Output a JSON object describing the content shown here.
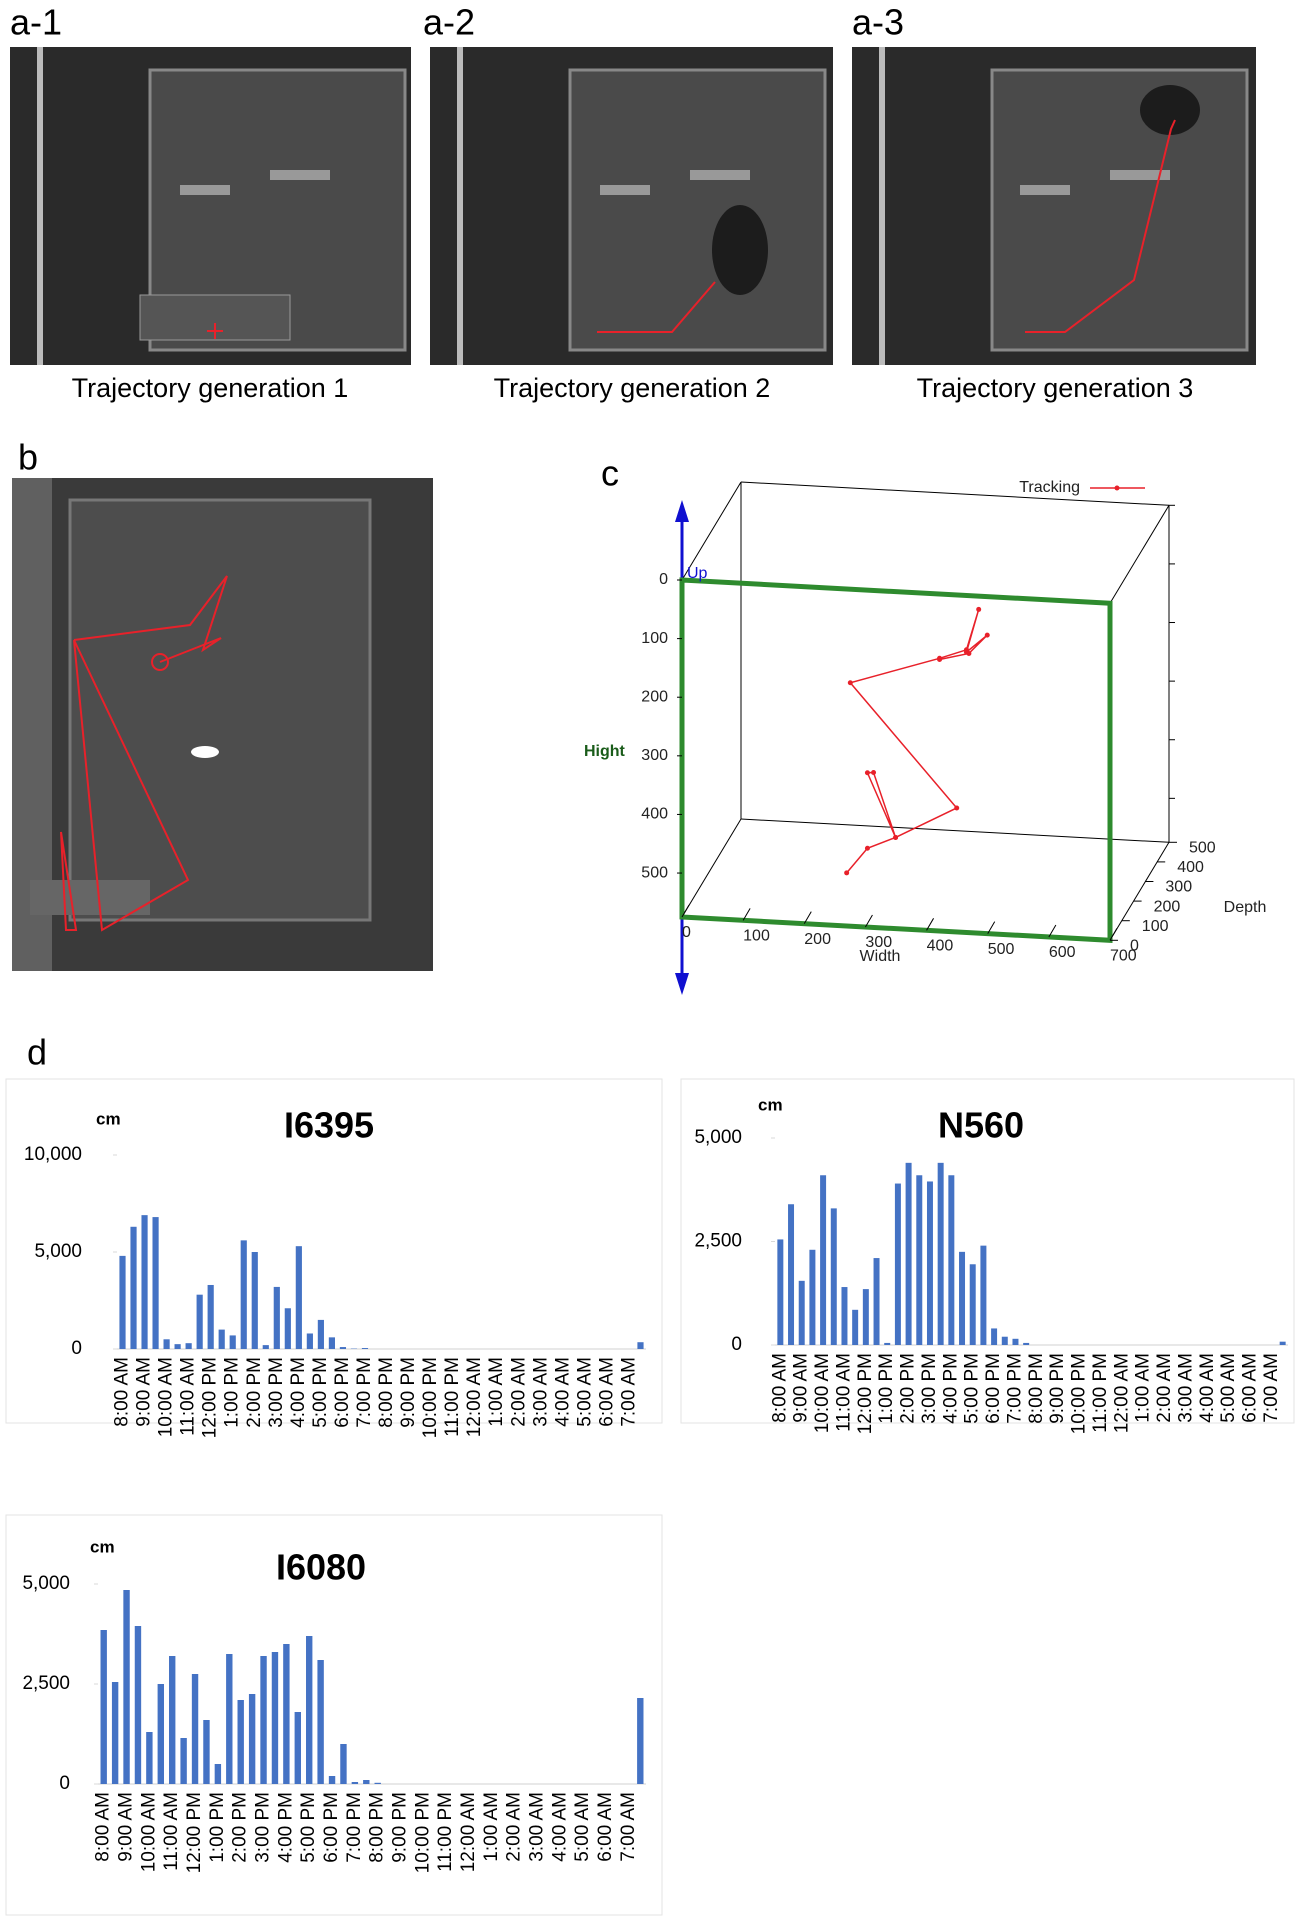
{
  "figure": {
    "labels": {
      "a1": "a-1",
      "a2": "a-2",
      "a3": "a-3",
      "b": "b",
      "c": "c",
      "d": "d"
    },
    "captions": [
      "Trajectory generation 1",
      "Trajectory generation 2",
      "Trajectory generation 3"
    ]
  },
  "chart_data": [
    {
      "type": "line3d",
      "xlabel": "Width",
      "ylabel": "Hight",
      "zlabel": "Depth",
      "up_label": "Up",
      "xlim": [
        0,
        700
      ],
      "ylim": [
        0,
        575
      ],
      "zlim": [
        0,
        500
      ],
      "xticks": [
        0,
        100,
        200,
        300,
        400,
        500,
        600,
        700
      ],
      "yticks": [
        0,
        100,
        200,
        300,
        400,
        500
      ],
      "zticks": [
        0,
        100,
        200,
        300,
        400,
        500
      ],
      "series": [
        {
          "name": "Tracking",
          "color": "#e8212a",
          "x": [
            250,
            284,
            330,
            255,
            265,
            330,
            430,
            227,
            373,
            417,
            437,
            417,
            451,
            421,
            373
          ],
          "y": [
            519,
            475,
            454,
            398,
            397,
            454,
            398,
            246,
            196,
            179,
            109,
            183,
            152,
            185,
            198
          ],
          "z": [
            100,
            100,
            100,
            250,
            250,
            100,
            100,
            250,
            250,
            250,
            250,
            250,
            250,
            250,
            250
          ]
        }
      ]
    },
    {
      "type": "bar",
      "title": "I6395",
      "unit": "cm",
      "color": "#4472c4",
      "categories": [
        "8:00 AM",
        null,
        "9:00 AM",
        null,
        "10:00 AM",
        null,
        "11:00 AM",
        null,
        "12:00 PM",
        null,
        "1:00 PM",
        null,
        "2:00 PM",
        null,
        "3:00 PM",
        null,
        "4:00 PM",
        null,
        "5:00 PM",
        null,
        "6:00 PM",
        null,
        "7:00 PM",
        null,
        "8:00 PM",
        null,
        "9:00 PM",
        null,
        "10:00 PM",
        null,
        "11:00 PM",
        null,
        "12:00 AM",
        null,
        "1:00 AM",
        null,
        "2:00 AM",
        null,
        "3:00 AM",
        null,
        "4:00 AM",
        null,
        "5:00 AM",
        null,
        "6:00 AM",
        null,
        "7:00 AM",
        null
      ],
      "values": [
        4800,
        6300,
        6900,
        6800,
        500,
        250,
        300,
        2800,
        3300,
        1000,
        700,
        5600,
        5000,
        200,
        3200,
        2100,
        5300,
        800,
        1500,
        600,
        100,
        20,
        50,
        0,
        0,
        0,
        0,
        0,
        0,
        0,
        0,
        0,
        0,
        0,
        0,
        0,
        0,
        0,
        0,
        0,
        0,
        0,
        0,
        0,
        0,
        0,
        0,
        350
      ],
      "ylim": [
        0,
        10000
      ],
      "yticks": [
        0,
        {
          "value": 5000,
          "label": "5,000"
        },
        {
          "value": 10000,
          "label": "10,000"
        }
      ]
    },
    {
      "type": "bar",
      "title": "N560",
      "unit": "cm",
      "color": "#4472c4",
      "categories": [
        "8:00 AM",
        null,
        "9:00 AM",
        null,
        "10:00 AM",
        null,
        "11:00 AM",
        null,
        "12:00 PM",
        null,
        "1:00 PM",
        null,
        "2:00 PM",
        null,
        "3:00 PM",
        null,
        "4:00 PM",
        null,
        "5:00 PM",
        null,
        "6:00 PM",
        null,
        "7:00 PM",
        null,
        "8:00 PM",
        null,
        "9:00 PM",
        null,
        "10:00 PM",
        null,
        "11:00 PM",
        null,
        "12:00 AM",
        null,
        "1:00 AM",
        null,
        "2:00 AM",
        null,
        "3:00 AM",
        null,
        "4:00 AM",
        null,
        "5:00 AM",
        null,
        "6:00 AM",
        null,
        "7:00 AM",
        null
      ],
      "values": [
        2550,
        3400,
        1550,
        2300,
        4100,
        3300,
        1400,
        850,
        1350,
        2100,
        50,
        3900,
        4400,
        4100,
        3950,
        4400,
        4100,
        2250,
        1950,
        2400,
        400,
        200,
        150,
        50,
        0,
        0,
        0,
        0,
        0,
        0,
        0,
        0,
        0,
        0,
        0,
        0,
        0,
        0,
        0,
        0,
        0,
        0,
        0,
        0,
        0,
        0,
        0,
        80
      ],
      "ylim": [
        0,
        5000
      ],
      "yticks": [
        0,
        {
          "value": 2500,
          "label": "2,500"
        },
        {
          "value": 5000,
          "label": "5,000"
        }
      ]
    },
    {
      "type": "bar",
      "title": "I6080",
      "unit": "cm",
      "color": "#4472c4",
      "categories": [
        "8:00 AM",
        null,
        "9:00 AM",
        null,
        "10:00 AM",
        null,
        "11:00 AM",
        null,
        "12:00 PM",
        null,
        "1:00 PM",
        null,
        "2:00 PM",
        null,
        "3:00 PM",
        null,
        "4:00 PM",
        null,
        "5:00 PM",
        null,
        "6:00 PM",
        null,
        "7:00 PM",
        null,
        "8:00 PM",
        null,
        "9:00 PM",
        null,
        "10:00 PM",
        null,
        "11:00 PM",
        null,
        "12:00 AM",
        null,
        "1:00 AM",
        null,
        "2:00 AM",
        null,
        "3:00 AM",
        null,
        "4:00 AM",
        null,
        "5:00 AM",
        null,
        "6:00 AM",
        null,
        "7:00 AM",
        null
      ],
      "values": [
        3850,
        2550,
        4850,
        3950,
        1300,
        2500,
        3200,
        1150,
        2750,
        1600,
        500,
        3250,
        2100,
        2250,
        3200,
        3300,
        3500,
        1800,
        3700,
        3100,
        200,
        1000,
        50,
        100,
        30,
        0,
        0,
        0,
        0,
        0,
        0,
        0,
        0,
        0,
        0,
        0,
        0,
        0,
        0,
        0,
        0,
        0,
        0,
        0,
        0,
        0,
        0,
        2150
      ],
      "ylim": [
        0,
        5000
      ],
      "yticks": [
        0,
        {
          "value": 2500,
          "label": "2,500"
        },
        {
          "value": 5000,
          "label": "5,000"
        }
      ]
    }
  ]
}
